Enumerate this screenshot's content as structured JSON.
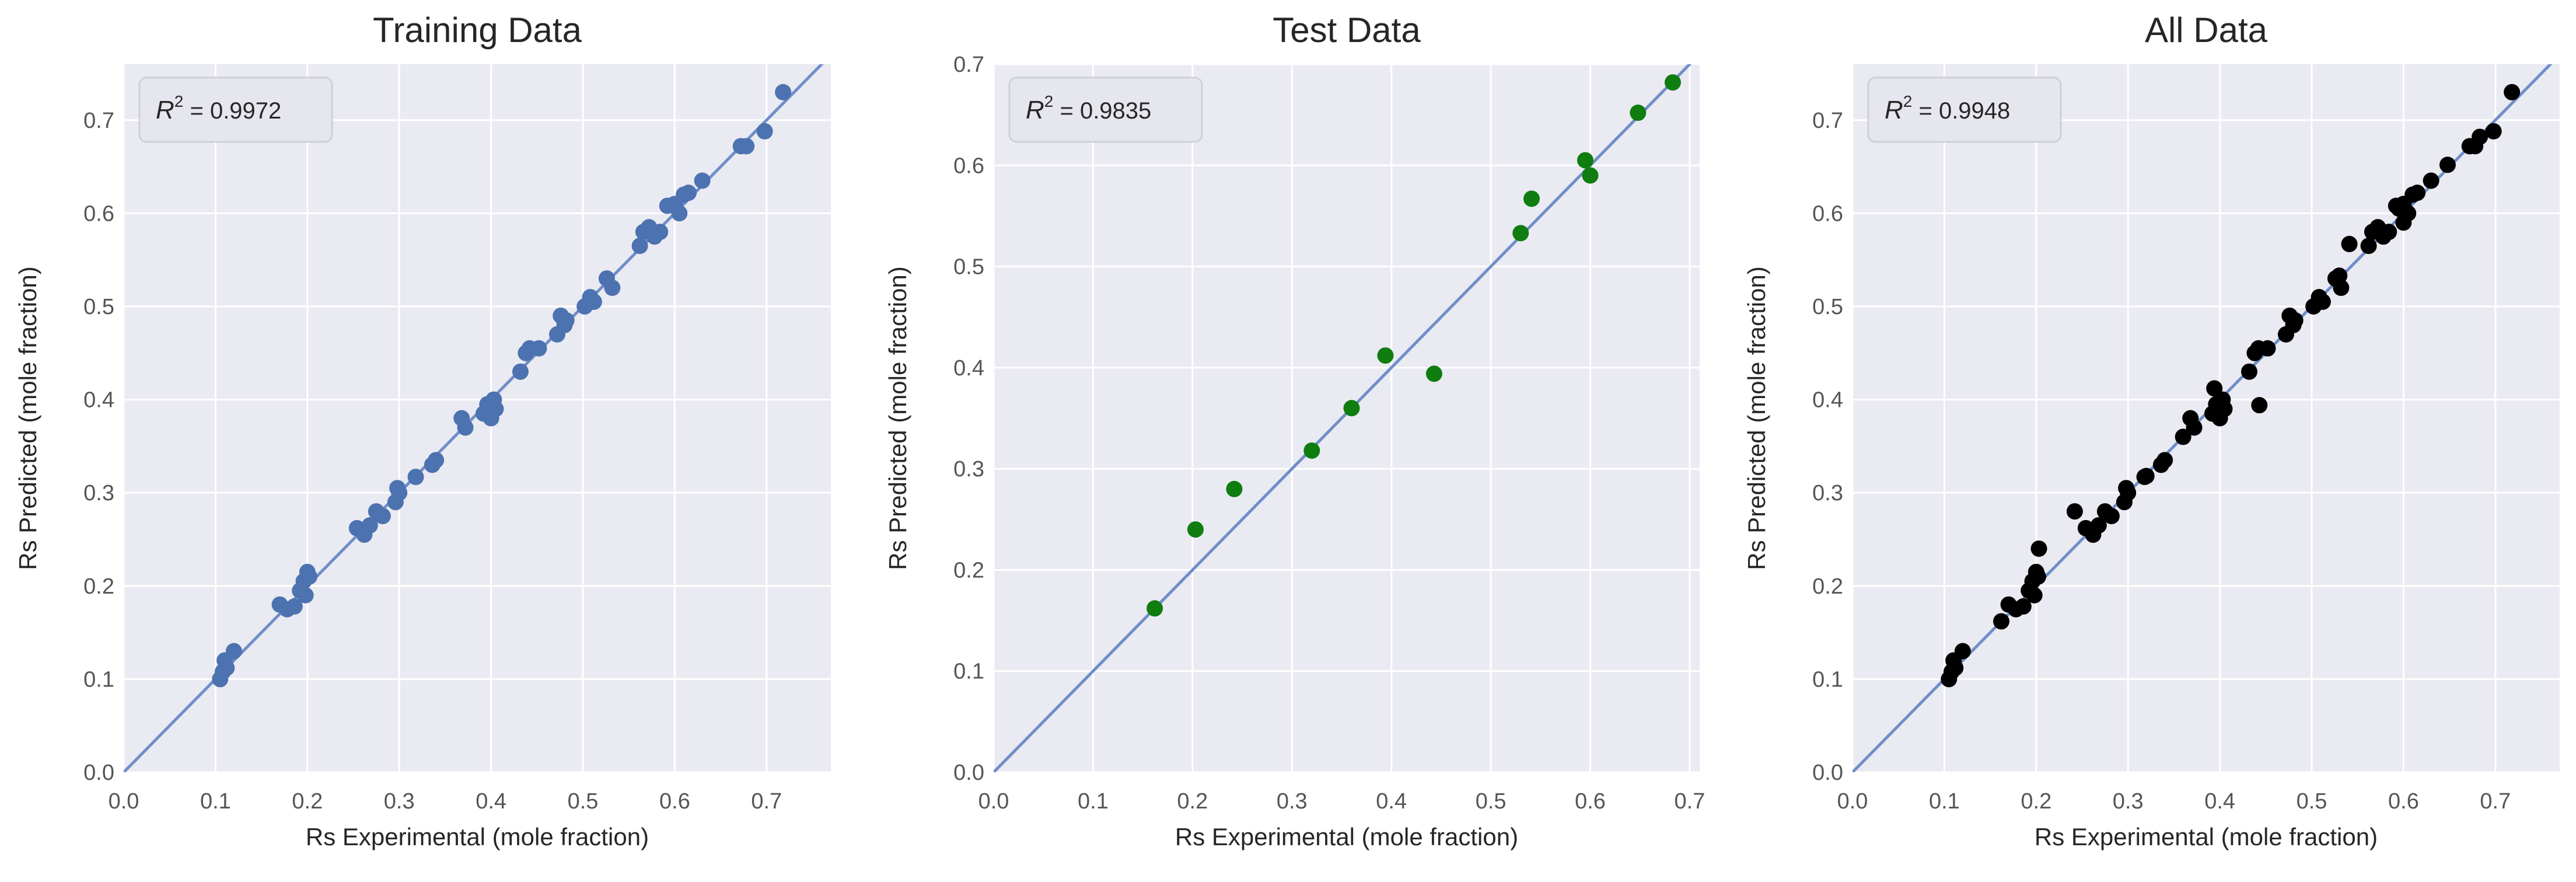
{
  "colors": {
    "plot_bg": "#EAEAF2",
    "grid": "#FFFFFF",
    "identity_line": "#6F8EC9",
    "training_points": "#4C72B0",
    "test_points": "#0F7D0F",
    "all_points": "#000000",
    "text": "#262626",
    "tick_text": "#555555"
  },
  "chart_data": [
    {
      "type": "scatter",
      "title": "Training Data",
      "xlabel": "Rs Experimental (mole fraction)",
      "ylabel": "Rs Predicted (mole fraction)",
      "xlim": [
        0.0,
        0.77
      ],
      "ylim": [
        0.0,
        0.76
      ],
      "xticks": [
        "0.0",
        "0.1",
        "0.2",
        "0.3",
        "0.4",
        "0.5",
        "0.6",
        "0.7"
      ],
      "yticks": [
        "0.0",
        "0.1",
        "0.2",
        "0.3",
        "0.4",
        "0.5",
        "0.6",
        "0.7"
      ],
      "grid": true,
      "identity_line": true,
      "annotation": {
        "r2_label": "R",
        "r2_sup": "2",
        "r2_value": " = 0.9972"
      },
      "point_color": "#4C72B0",
      "x": [
        0.105,
        0.108,
        0.11,
        0.112,
        0.12,
        0.17,
        0.178,
        0.186,
        0.192,
        0.196,
        0.198,
        0.2,
        0.202,
        0.254,
        0.262,
        0.268,
        0.275,
        0.282,
        0.296,
        0.298,
        0.3,
        0.318,
        0.336,
        0.34,
        0.368,
        0.372,
        0.392,
        0.396,
        0.4,
        0.403,
        0.405,
        0.432,
        0.438,
        0.442,
        0.452,
        0.472,
        0.476,
        0.48,
        0.482,
        0.502,
        0.508,
        0.512,
        0.526,
        0.532,
        0.562,
        0.566,
        0.572,
        0.578,
        0.584,
        0.592,
        0.6,
        0.605,
        0.61,
        0.615,
        0.63,
        0.672,
        0.678,
        0.698,
        0.718
      ],
      "y": [
        0.1,
        0.108,
        0.12,
        0.112,
        0.13,
        0.18,
        0.175,
        0.178,
        0.195,
        0.205,
        0.19,
        0.215,
        0.21,
        0.262,
        0.255,
        0.265,
        0.28,
        0.275,
        0.29,
        0.305,
        0.3,
        0.317,
        0.33,
        0.335,
        0.38,
        0.37,
        0.385,
        0.395,
        0.38,
        0.4,
        0.39,
        0.43,
        0.45,
        0.455,
        0.455,
        0.47,
        0.49,
        0.48,
        0.485,
        0.5,
        0.51,
        0.505,
        0.53,
        0.52,
        0.565,
        0.58,
        0.585,
        0.575,
        0.58,
        0.608,
        0.61,
        0.6,
        0.62,
        0.622,
        0.635,
        0.672,
        0.672,
        0.688,
        0.73
      ]
    },
    {
      "type": "scatter",
      "title": "Test Data",
      "xlabel": "Rs Experimental (mole fraction)",
      "ylabel": "Rs Predicted (mole fraction)",
      "xlim": [
        0.0,
        0.71
      ],
      "ylim": [
        0.0,
        0.7
      ],
      "xticks": [
        "0.0",
        "0.1",
        "0.2",
        "0.3",
        "0.4",
        "0.5",
        "0.6",
        "0.7"
      ],
      "yticks": [
        "0.0",
        "0.1",
        "0.2",
        "0.3",
        "0.4",
        "0.5",
        "0.6",
        "0.7"
      ],
      "grid": true,
      "identity_line": true,
      "annotation": {
        "r2_label": "R",
        "r2_sup": "2",
        "r2_value": " = 0.9835"
      },
      "point_color": "#0F7D0F",
      "x": [
        0.162,
        0.203,
        0.242,
        0.32,
        0.36,
        0.394,
        0.443,
        0.53,
        0.541,
        0.595,
        0.6,
        0.648,
        0.683
      ],
      "y": [
        0.162,
        0.24,
        0.28,
        0.318,
        0.36,
        0.412,
        0.394,
        0.533,
        0.567,
        0.605,
        0.59,
        0.652,
        0.682
      ]
    },
    {
      "type": "scatter",
      "title": "All Data",
      "xlabel": "Rs Experimental (mole fraction)",
      "ylabel": "Rs Predicted (mole fraction)",
      "xlim": [
        0.0,
        0.77
      ],
      "ylim": [
        0.0,
        0.76
      ],
      "xticks": [
        "0.0",
        "0.1",
        "0.2",
        "0.3",
        "0.4",
        "0.5",
        "0.6",
        "0.7"
      ],
      "yticks": [
        "0.0",
        "0.1",
        "0.2",
        "0.3",
        "0.4",
        "0.5",
        "0.6",
        "0.7"
      ],
      "grid": true,
      "identity_line": true,
      "annotation": {
        "r2_label": "R",
        "r2_sup": "2",
        "r2_value": " = 0.9948"
      },
      "point_color": "#000000",
      "x": [
        0.105,
        0.108,
        0.11,
        0.112,
        0.12,
        0.162,
        0.17,
        0.178,
        0.186,
        0.192,
        0.196,
        0.198,
        0.2,
        0.202,
        0.203,
        0.242,
        0.254,
        0.262,
        0.268,
        0.275,
        0.282,
        0.296,
        0.298,
        0.3,
        0.318,
        0.32,
        0.336,
        0.34,
        0.36,
        0.368,
        0.372,
        0.392,
        0.394,
        0.396,
        0.4,
        0.403,
        0.405,
        0.432,
        0.438,
        0.442,
        0.443,
        0.452,
        0.472,
        0.476,
        0.48,
        0.482,
        0.502,
        0.508,
        0.512,
        0.526,
        0.53,
        0.532,
        0.541,
        0.562,
        0.566,
        0.572,
        0.578,
        0.584,
        0.592,
        0.595,
        0.6,
        0.6,
        0.605,
        0.61,
        0.615,
        0.63,
        0.648,
        0.672,
        0.678,
        0.683,
        0.698,
        0.718
      ],
      "y": [
        0.1,
        0.108,
        0.12,
        0.112,
        0.13,
        0.162,
        0.18,
        0.175,
        0.178,
        0.195,
        0.205,
        0.19,
        0.215,
        0.21,
        0.24,
        0.28,
        0.262,
        0.255,
        0.265,
        0.28,
        0.275,
        0.29,
        0.305,
        0.3,
        0.317,
        0.318,
        0.33,
        0.335,
        0.36,
        0.38,
        0.37,
        0.385,
        0.412,
        0.395,
        0.38,
        0.4,
        0.39,
        0.43,
        0.45,
        0.455,
        0.394,
        0.455,
        0.47,
        0.49,
        0.48,
        0.485,
        0.5,
        0.51,
        0.505,
        0.53,
        0.533,
        0.52,
        0.567,
        0.565,
        0.58,
        0.585,
        0.575,
        0.58,
        0.608,
        0.605,
        0.61,
        0.59,
        0.6,
        0.62,
        0.622,
        0.635,
        0.652,
        0.672,
        0.672,
        0.682,
        0.688,
        0.73
      ]
    }
  ]
}
